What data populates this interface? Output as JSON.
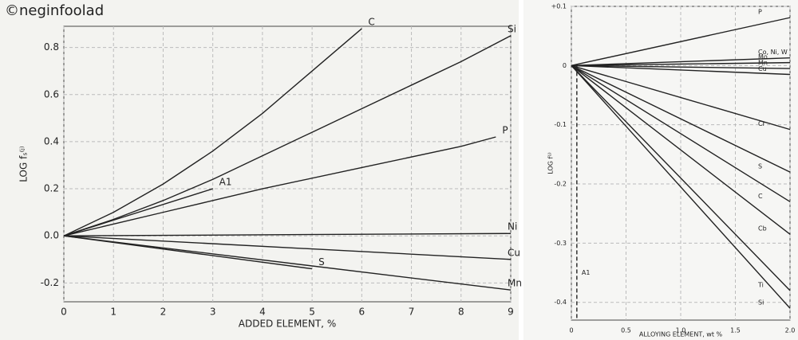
{
  "watermark": "©neginfoolad",
  "chart_data": [
    {
      "type": "line",
      "xlabel": "ADDED ELEMENT, %",
      "ylabel": "LOG fₛ⁽ʲ⁾",
      "xlim": [
        0,
        9
      ],
      "ylim": [
        -0.28,
        0.89
      ],
      "xticks": [
        0,
        1,
        2,
        3,
        4,
        5,
        6,
        7,
        8,
        9
      ],
      "yticks": [
        -0.2,
        {
          "value": 0,
          "label": "0.0"
        },
        0.2,
        0.4,
        0.6,
        0.8
      ],
      "grid": true,
      "color": "#222",
      "series": [
        {
          "name": "C",
          "x": [
            0,
            1,
            2,
            3,
            4,
            5,
            6
          ],
          "values": [
            0,
            0.1,
            0.22,
            0.36,
            0.52,
            0.7,
            0.88
          ]
        },
        {
          "name": "Si",
          "x": [
            0,
            1,
            2,
            3,
            4,
            5,
            6,
            7,
            8,
            9
          ],
          "values": [
            0,
            0.07,
            0.15,
            0.24,
            0.34,
            0.44,
            0.54,
            0.64,
            0.74,
            0.85
          ]
        },
        {
          "name": "P",
          "x": [
            0,
            2,
            4,
            6,
            8,
            8.7
          ],
          "values": [
            0,
            0.1,
            0.2,
            0.29,
            0.38,
            0.42
          ]
        },
        {
          "name": "A1",
          "x": [
            0,
            3
          ],
          "values": [
            0,
            0.2
          ]
        },
        {
          "name": "Ni",
          "x": [
            0,
            9
          ],
          "values": [
            0,
            0.01
          ]
        },
        {
          "name": "Cu",
          "x": [
            0,
            9
          ],
          "values": [
            0,
            -0.1
          ]
        },
        {
          "name": "S",
          "x": [
            0,
            5
          ],
          "values": [
            0,
            -0.14
          ]
        },
        {
          "name": "Mn",
          "x": [
            0,
            9
          ],
          "values": [
            0,
            -0.23
          ]
        }
      ]
    },
    {
      "type": "line",
      "xlabel": "ALLOYING ELEMENT, wt %",
      "ylabel": "LOG f⁽ʲ⁾",
      "xlim": [
        0,
        2
      ],
      "ylim": [
        -0.43,
        0.1
      ],
      "xticks": [
        0,
        0.5,
        {
          "value": 1,
          "label": "1.0"
        },
        1.5,
        {
          "value": 2,
          "label": "2.0"
        }
      ],
      "yticks": [
        {
          "value": 0.1,
          "label": "+0.1"
        },
        0,
        -0.1,
        -0.2,
        -0.3,
        -0.4
      ],
      "grid": true,
      "color": "#222",
      "series": [
        {
          "name": "P",
          "x": [
            0,
            2
          ],
          "values": [
            0,
            0.081
          ]
        },
        {
          "name": "Co, Ni, W",
          "x": [
            0,
            2
          ],
          "values": [
            0,
            0.013
          ]
        },
        {
          "name": "Mo",
          "x": [
            0,
            2
          ],
          "values": [
            0,
            0.005
          ]
        },
        {
          "name": "Mn",
          "x": [
            0,
            2
          ],
          "values": [
            0,
            -0.005
          ]
        },
        {
          "name": "Cu",
          "x": [
            0,
            2
          ],
          "values": [
            0,
            -0.015
          ]
        },
        {
          "name": "Cr",
          "x": [
            0,
            2
          ],
          "values": [
            0,
            -0.108
          ]
        },
        {
          "name": "S",
          "x": [
            0,
            2
          ],
          "values": [
            0,
            -0.18
          ]
        },
        {
          "name": "C",
          "x": [
            0,
            2
          ],
          "values": [
            0,
            -0.23
          ]
        },
        {
          "name": "Cb",
          "x": [
            0,
            2
          ],
          "values": [
            0,
            -0.285
          ]
        },
        {
          "name": "Ti",
          "x": [
            0,
            2
          ],
          "values": [
            0,
            -0.38
          ]
        },
        {
          "name": "Si",
          "x": [
            0,
            2
          ],
          "values": [
            0,
            -0.41
          ]
        },
        {
          "name": "A1",
          "x": [
            0.05,
            0.05
          ],
          "values": [
            0,
            -0.43
          ],
          "dashed": true
        }
      ]
    }
  ]
}
